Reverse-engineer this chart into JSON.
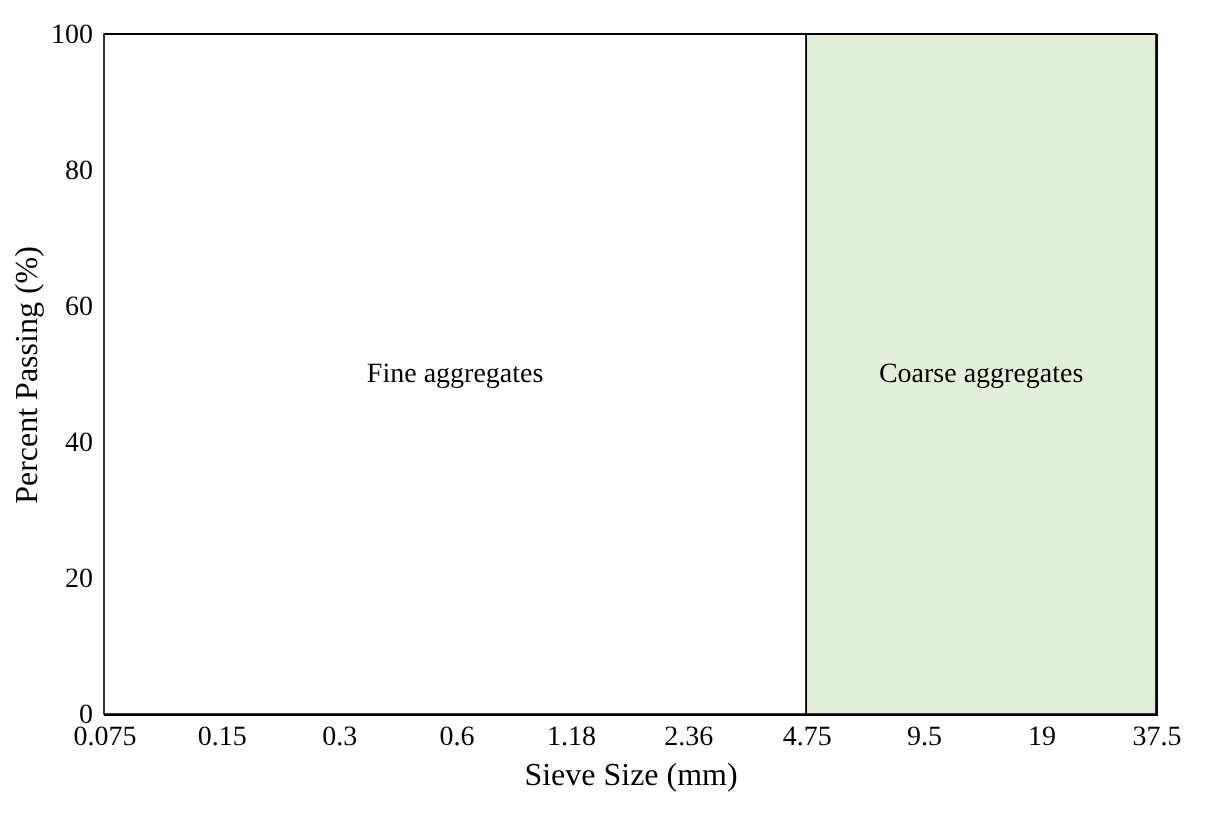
{
  "chart_data": {
    "type": "line",
    "xlabel": "Sieve Size (mm)",
    "ylabel": "Percent Passing (%)",
    "log": "x",
    "xlim": [
      0.075,
      37.5
    ],
    "xticks": [
      0.075,
      0.15,
      0.3,
      0.6,
      1.18,
      2.36,
      4.75,
      9.5,
      19,
      37.5
    ],
    "ylim": [
      0,
      100
    ],
    "yticks": [
      0,
      20,
      40,
      60,
      80,
      100
    ],
    "bands": [
      {
        "axis": "x",
        "from": 0.075,
        "to": 4.75,
        "label": "Fine aggregates",
        "color": "#ffffff"
      },
      {
        "axis": "x",
        "from": 4.75,
        "to": 37.5,
        "label": "Coarse aggregates",
        "color": "#e2efda"
      }
    ]
  }
}
